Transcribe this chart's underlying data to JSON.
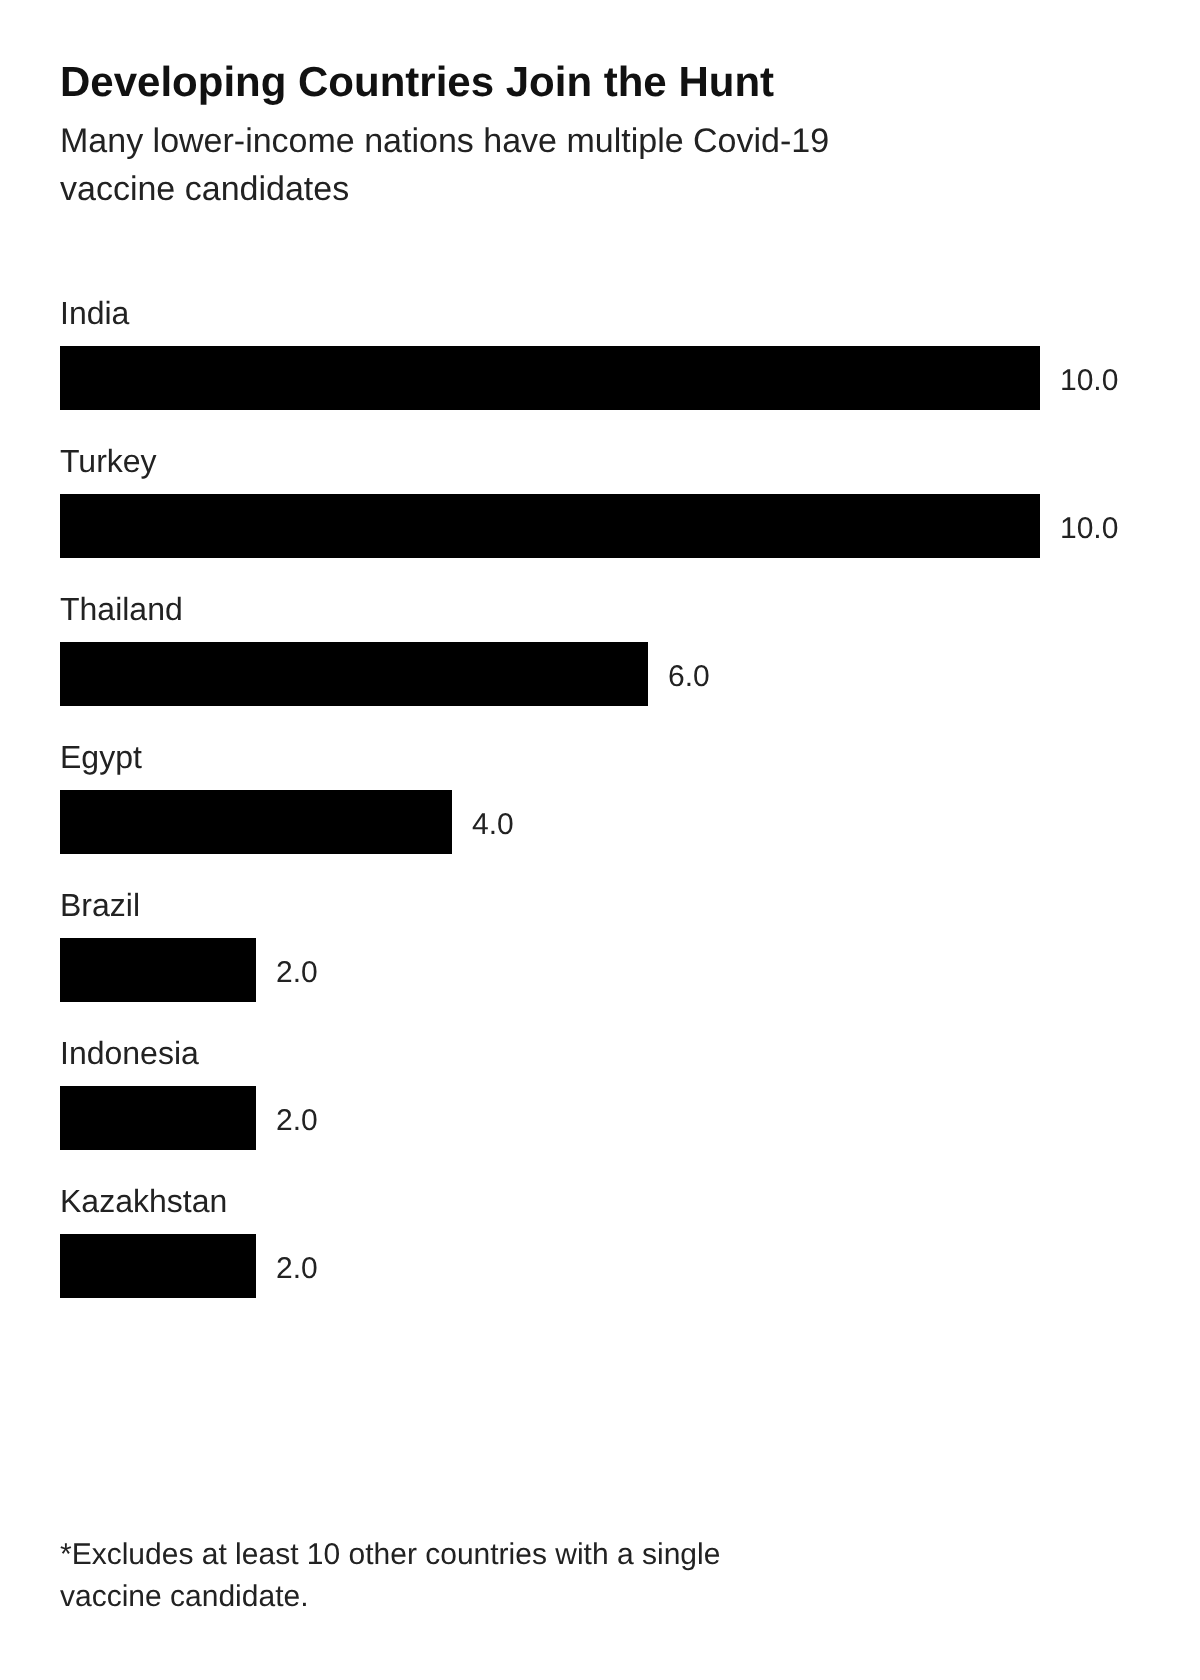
{
  "chart_data": {
    "type": "bar",
    "orientation": "horizontal",
    "title": "Developing Countries Join the Hunt",
    "subtitle": "Many lower-income nations have multiple Covid-19 vaccine candidates",
    "categories": [
      "India",
      "Turkey",
      "Thailand",
      "Egypt",
      "Brazil",
      "Indonesia",
      "Kazakhstan"
    ],
    "values": [
      10,
      10,
      6,
      4,
      2,
      2,
      2
    ],
    "value_labels": [
      "10.0",
      "10.0",
      "6.0",
      "4.0",
      "2.0",
      "2.0",
      "2.0"
    ],
    "color": "#000000",
    "annotations": [
      "*Excludes at least 10 other countries with a single vaccine candidate."
    ]
  }
}
